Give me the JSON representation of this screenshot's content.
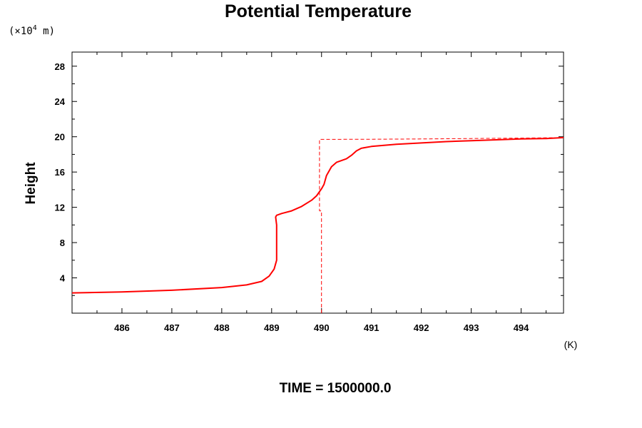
{
  "chart_data": {
    "type": "line",
    "title": "Potential Temperature",
    "xlabel": "",
    "ylabel": "Height",
    "x_unit": "(K)",
    "y_unit_prefix": "(×10",
    "y_unit_exponent": "4",
    "y_unit_suffix": " m)",
    "xlim": [
      485.0,
      494.85
    ],
    "ylim": [
      0.0,
      29.6
    ],
    "x_ticks": [
      486,
      487,
      488,
      489,
      490,
      491,
      492,
      493,
      494
    ],
    "y_ticks": [
      4,
      8,
      12,
      16,
      20,
      24,
      28
    ],
    "grid": false,
    "series": [
      {
        "style": "solid",
        "color": "#ff0000",
        "x": [
          485.0,
          486.0,
          487.0,
          488.0,
          488.5,
          488.8,
          488.95,
          489.05,
          489.1,
          489.1,
          489.1,
          489.1,
          489.1,
          489.08,
          489.1,
          489.2,
          489.4,
          489.6,
          489.8,
          489.9,
          490.0,
          490.05,
          490.1,
          490.2,
          490.3,
          490.5,
          490.6,
          490.7,
          490.8,
          491.0,
          491.5,
          492.0,
          492.5,
          493.0,
          493.5,
          494.0,
          494.5,
          494.85
        ],
        "y": [
          2.3,
          2.4,
          2.6,
          2.9,
          3.2,
          3.6,
          4.2,
          5.0,
          6.0,
          7.0,
          8.0,
          9.0,
          10.0,
          10.9,
          11.1,
          11.3,
          11.6,
          12.1,
          12.8,
          13.3,
          14.1,
          14.6,
          15.6,
          16.6,
          17.1,
          17.5,
          17.9,
          18.4,
          18.7,
          18.9,
          19.15,
          19.3,
          19.45,
          19.55,
          19.65,
          19.75,
          19.8,
          19.9
        ]
      },
      {
        "style": "dashed",
        "color": "#ff0000",
        "x": [
          490.0,
          490.0,
          489.96,
          489.96,
          491.0,
          492.0,
          493.0,
          494.0,
          494.85
        ],
        "y": [
          0.0,
          11.6,
          11.6,
          19.7,
          19.72,
          19.75,
          19.8,
          19.85,
          19.9
        ]
      }
    ]
  },
  "footer": {
    "label": "TIME = 1500000.0"
  }
}
